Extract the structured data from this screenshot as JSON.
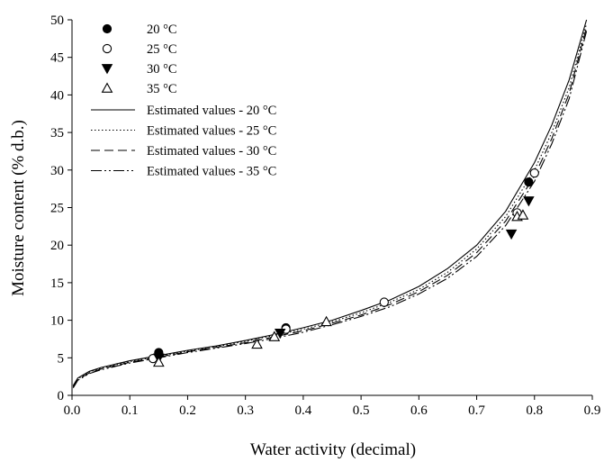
{
  "chart_data": {
    "type": "scatter",
    "xlabel": "Water activity (decimal)",
    "ylabel": "Moisture content (% d.b.)",
    "xlim": [
      0.0,
      0.9
    ],
    "ylim": [
      0,
      50
    ],
    "x_ticks": [
      "0.0",
      "0.1",
      "0.2",
      "0.3",
      "0.4",
      "0.5",
      "0.6",
      "0.7",
      "0.8",
      "0.9"
    ],
    "y_ticks": [
      "0",
      "5",
      "10",
      "15",
      "20",
      "25",
      "30",
      "35",
      "40",
      "45",
      "50"
    ],
    "grid": false,
    "legend_position": "top-left",
    "observed": [
      {
        "name": "20 °C",
        "marker": "filled-circle",
        "points": [
          [
            0.15,
            5.7
          ],
          [
            0.37,
            9.0
          ],
          [
            0.79,
            28.4
          ]
        ]
      },
      {
        "name": "25 °C",
        "marker": "open-circle",
        "points": [
          [
            0.14,
            4.9
          ],
          [
            0.37,
            8.8
          ],
          [
            0.54,
            12.4
          ],
          [
            0.77,
            24.3
          ],
          [
            0.8,
            29.6
          ]
        ]
      },
      {
        "name": "30 °C",
        "marker": "filled-triangle-down",
        "points": [
          [
            0.15,
            5.0
          ],
          [
            0.36,
            8.3
          ],
          [
            0.76,
            21.5
          ],
          [
            0.79,
            25.9
          ]
        ]
      },
      {
        "name": "35 °C",
        "marker": "open-triangle-up",
        "points": [
          [
            0.15,
            4.4
          ],
          [
            0.32,
            6.8
          ],
          [
            0.35,
            7.8
          ],
          [
            0.44,
            9.8
          ],
          [
            0.77,
            23.8
          ],
          [
            0.78,
            24.0
          ]
        ]
      }
    ],
    "estimated": [
      {
        "name": "Estimated values - 20 °C",
        "dash": "solid",
        "points": [
          [
            0.002,
            1.3
          ],
          [
            0.01,
            2.3
          ],
          [
            0.03,
            3.2
          ],
          [
            0.05,
            3.7
          ],
          [
            0.1,
            4.6
          ],
          [
            0.15,
            5.3
          ],
          [
            0.2,
            6.0
          ],
          [
            0.25,
            6.6
          ],
          [
            0.3,
            7.3
          ],
          [
            0.35,
            8.1
          ],
          [
            0.4,
            9.0
          ],
          [
            0.45,
            10.0
          ],
          [
            0.5,
            11.3
          ],
          [
            0.55,
            12.7
          ],
          [
            0.6,
            14.5
          ],
          [
            0.65,
            16.9
          ],
          [
            0.7,
            20.0
          ],
          [
            0.75,
            24.5
          ],
          [
            0.8,
            31.0
          ],
          [
            0.83,
            36.0
          ],
          [
            0.86,
            42.0
          ],
          [
            0.89,
            50.0
          ]
        ]
      },
      {
        "name": "Estimated values - 25 °C",
        "dash": "dotted",
        "points": [
          [
            0.002,
            1.2
          ],
          [
            0.01,
            2.2
          ],
          [
            0.03,
            3.1
          ],
          [
            0.05,
            3.6
          ],
          [
            0.1,
            4.5
          ],
          [
            0.15,
            5.2
          ],
          [
            0.2,
            5.9
          ],
          [
            0.25,
            6.5
          ],
          [
            0.3,
            7.2
          ],
          [
            0.35,
            8.0
          ],
          [
            0.4,
            8.8
          ],
          [
            0.45,
            9.8
          ],
          [
            0.5,
            11.0
          ],
          [
            0.55,
            12.4
          ],
          [
            0.6,
            14.1
          ],
          [
            0.65,
            16.4
          ],
          [
            0.7,
            19.5
          ],
          [
            0.75,
            23.8
          ],
          [
            0.8,
            30.0
          ],
          [
            0.83,
            35.0
          ],
          [
            0.86,
            41.0
          ],
          [
            0.89,
            49.5
          ]
        ]
      },
      {
        "name": "Estimated values - 30 °C",
        "dash": "dashed",
        "points": [
          [
            0.002,
            1.1
          ],
          [
            0.01,
            2.1
          ],
          [
            0.03,
            3.0
          ],
          [
            0.05,
            3.5
          ],
          [
            0.1,
            4.4
          ],
          [
            0.15,
            5.1
          ],
          [
            0.2,
            5.8
          ],
          [
            0.25,
            6.4
          ],
          [
            0.3,
            7.0
          ],
          [
            0.35,
            7.8
          ],
          [
            0.4,
            8.6
          ],
          [
            0.45,
            9.6
          ],
          [
            0.5,
            10.7
          ],
          [
            0.55,
            12.1
          ],
          [
            0.6,
            13.8
          ],
          [
            0.65,
            16.0
          ],
          [
            0.7,
            19.0
          ],
          [
            0.75,
            23.2
          ],
          [
            0.8,
            29.2
          ],
          [
            0.83,
            34.2
          ],
          [
            0.86,
            40.2
          ],
          [
            0.89,
            49.0
          ]
        ]
      },
      {
        "name": "Estimated values - 35 °C",
        "dash": "dashdotdot",
        "points": [
          [
            0.002,
            1.0
          ],
          [
            0.01,
            2.0
          ],
          [
            0.03,
            2.9
          ],
          [
            0.05,
            3.4
          ],
          [
            0.1,
            4.3
          ],
          [
            0.15,
            5.0
          ],
          [
            0.2,
            5.7
          ],
          [
            0.25,
            6.3
          ],
          [
            0.3,
            6.9
          ],
          [
            0.35,
            7.6
          ],
          [
            0.4,
            8.4
          ],
          [
            0.45,
            9.4
          ],
          [
            0.5,
            10.5
          ],
          [
            0.55,
            11.8
          ],
          [
            0.6,
            13.5
          ],
          [
            0.65,
            15.6
          ],
          [
            0.7,
            18.5
          ],
          [
            0.75,
            22.6
          ],
          [
            0.8,
            28.5
          ],
          [
            0.83,
            33.5
          ],
          [
            0.86,
            39.5
          ],
          [
            0.89,
            48.5
          ]
        ]
      }
    ]
  }
}
